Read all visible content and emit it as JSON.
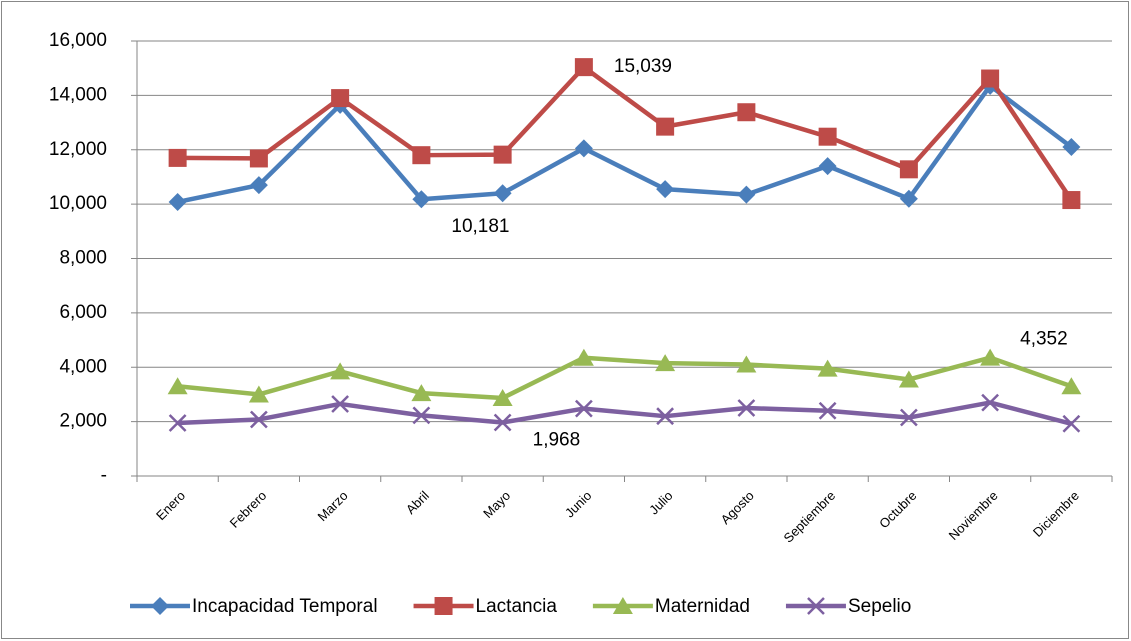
{
  "chart_data": {
    "type": "line",
    "categories": [
      "Enero",
      "Febrero",
      "Marzo",
      "Abril",
      "Mayo",
      "Junio",
      "Julio",
      "Agosto",
      "Septiembre",
      "Octubre",
      "Noviembre",
      "Diciembre"
    ],
    "series": [
      {
        "name": "Incapacidad Temporal",
        "color": "#4a7ebb",
        "marker": "diamond",
        "values": [
          10080,
          10700,
          13650,
          10181,
          10400,
          12050,
          10550,
          10350,
          11400,
          10200,
          14350,
          12100
        ],
        "value_labels": [
          null,
          null,
          null,
          "10,181",
          null,
          null,
          null,
          null,
          null,
          null,
          null,
          null
        ]
      },
      {
        "name": "Lactancia",
        "color": "#be4b48",
        "marker": "square",
        "values": [
          11700,
          11680,
          13900,
          11800,
          11820,
          15039,
          12850,
          13380,
          12480,
          11280,
          14620,
          10150
        ],
        "value_labels": [
          null,
          null,
          null,
          null,
          null,
          "15,039",
          null,
          null,
          null,
          null,
          null,
          null
        ]
      },
      {
        "name": "Maternidad",
        "color": "#98b954",
        "marker": "triangle",
        "values": [
          3300,
          3000,
          3850,
          3050,
          2870,
          4350,
          4150,
          4100,
          3950,
          3550,
          4352,
          3300
        ],
        "value_labels": [
          null,
          null,
          null,
          null,
          null,
          null,
          null,
          null,
          null,
          null,
          "4,352",
          null
        ]
      },
      {
        "name": "Sepelio",
        "color": "#7d60a0",
        "marker": "x",
        "values": [
          1950,
          2080,
          2650,
          2230,
          1968,
          2480,
          2200,
          2500,
          2400,
          2150,
          2700,
          1920
        ],
        "value_labels": [
          null,
          null,
          null,
          null,
          "1,968",
          null,
          null,
          null,
          null,
          null,
          null,
          null
        ]
      }
    ],
    "ylim": [
      0,
      16000
    ],
    "yticks": [
      {
        "value": 0,
        "label": "-"
      },
      {
        "value": 2000,
        "label": "2,000"
      },
      {
        "value": 4000,
        "label": "4,000"
      },
      {
        "value": 6000,
        "label": "6,000"
      },
      {
        "value": 8000,
        "label": "8,000"
      },
      {
        "value": 10000,
        "label": "10,000"
      },
      {
        "value": 12000,
        "label": "12,000"
      },
      {
        "value": 14000,
        "label": "14,000"
      },
      {
        "value": 16000,
        "label": "16,000"
      }
    ],
    "grid": true,
    "legend": "bottom"
  }
}
